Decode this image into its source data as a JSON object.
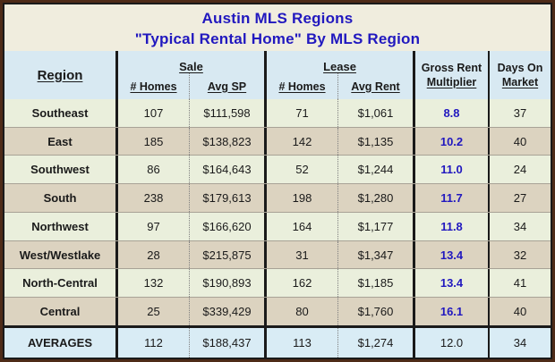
{
  "title": "Austin MLS Regions",
  "subtitle": "\"Typical Rental Home\" By MLS Region",
  "colors": {
    "title_text": "#2118bf",
    "grm_value_text": "#2118bf",
    "frame_border": "#4e2b18",
    "table_border": "#1a1a1a",
    "title_bg": "#f0edde",
    "header_bg": "#d8e9f2",
    "row_green_bg": "#eaefdc",
    "row_tan_bg": "#dcd3c0",
    "averages_bg": "#d9ecf5",
    "text": "#1a1a1a"
  },
  "table": {
    "headers": {
      "region": "Region",
      "sale_group": "Sale",
      "sale_homes": "# Homes",
      "sale_avg_sp": "Avg SP",
      "lease_group": "Lease",
      "lease_homes": "# Homes",
      "lease_avg_rent": "Avg Rent",
      "grm_line1": "Gross Rent",
      "grm_line2": "Multiplier",
      "dom_line1": "Days On",
      "dom_line2": "Market"
    },
    "rows": [
      {
        "region": "Southeast",
        "sale_homes": "107",
        "sale_avg_sp": "$111,598",
        "lease_homes": "71",
        "lease_avg_rent": "$1,061",
        "grm": "8.8",
        "dom": "37"
      },
      {
        "region": "East",
        "sale_homes": "185",
        "sale_avg_sp": "$138,823",
        "lease_homes": "142",
        "lease_avg_rent": "$1,135",
        "grm": "10.2",
        "dom": "40"
      },
      {
        "region": "Southwest",
        "sale_homes": "86",
        "sale_avg_sp": "$164,643",
        "lease_homes": "52",
        "lease_avg_rent": "$1,244",
        "grm": "11.0",
        "dom": "24"
      },
      {
        "region": "South",
        "sale_homes": "238",
        "sale_avg_sp": "$179,613",
        "lease_homes": "198",
        "lease_avg_rent": "$1,280",
        "grm": "11.7",
        "dom": "27"
      },
      {
        "region": "Northwest",
        "sale_homes": "97",
        "sale_avg_sp": "$166,620",
        "lease_homes": "164",
        "lease_avg_rent": "$1,177",
        "grm": "11.8",
        "dom": "34"
      },
      {
        "region": "West/Westlake",
        "sale_homes": "28",
        "sale_avg_sp": "$215,875",
        "lease_homes": "31",
        "lease_avg_rent": "$1,347",
        "grm": "13.4",
        "dom": "32"
      },
      {
        "region": "North-Central",
        "sale_homes": "132",
        "sale_avg_sp": "$190,893",
        "lease_homes": "162",
        "lease_avg_rent": "$1,185",
        "grm": "13.4",
        "dom": "41"
      },
      {
        "region": "Central",
        "sale_homes": "25",
        "sale_avg_sp": "$339,429",
        "lease_homes": "80",
        "lease_avg_rent": "$1,760",
        "grm": "16.1",
        "dom": "40"
      }
    ],
    "averages": {
      "region": "AVERAGES",
      "sale_homes": "112",
      "sale_avg_sp": "$188,437",
      "lease_homes": "113",
      "lease_avg_rent": "$1,274",
      "grm": "12.0",
      "dom": "34"
    }
  },
  "chart_data": {
    "type": "table",
    "title": "Austin MLS Regions",
    "subtitle": "\"Typical Rental Home\" By MLS Region",
    "columns": [
      "Region",
      "Sale # Homes",
      "Sale Avg SP",
      "Lease # Homes",
      "Lease Avg Rent",
      "Gross Rent Multiplier",
      "Days On Market"
    ],
    "rows": [
      [
        "Southeast",
        107,
        "$111,598",
        71,
        "$1,061",
        8.8,
        37
      ],
      [
        "East",
        185,
        "$138,823",
        142,
        "$1,135",
        10.2,
        40
      ],
      [
        "Southwest",
        86,
        "$164,643",
        52,
        "$1,244",
        11.0,
        24
      ],
      [
        "South",
        238,
        "$179,613",
        198,
        "$1,280",
        11.7,
        27
      ],
      [
        "Northwest",
        97,
        "$166,620",
        164,
        "$1,177",
        11.8,
        34
      ],
      [
        "West/Westlake",
        28,
        "$215,875",
        31,
        "$1,347",
        13.4,
        32
      ],
      [
        "North-Central",
        132,
        "$190,893",
        162,
        "$1,185",
        13.4,
        41
      ],
      [
        "Central",
        25,
        "$339,429",
        80,
        "$1,760",
        16.1,
        40
      ],
      [
        "AVERAGES",
        112,
        "$188,437",
        113,
        "$1,274",
        12.0,
        34
      ]
    ]
  }
}
